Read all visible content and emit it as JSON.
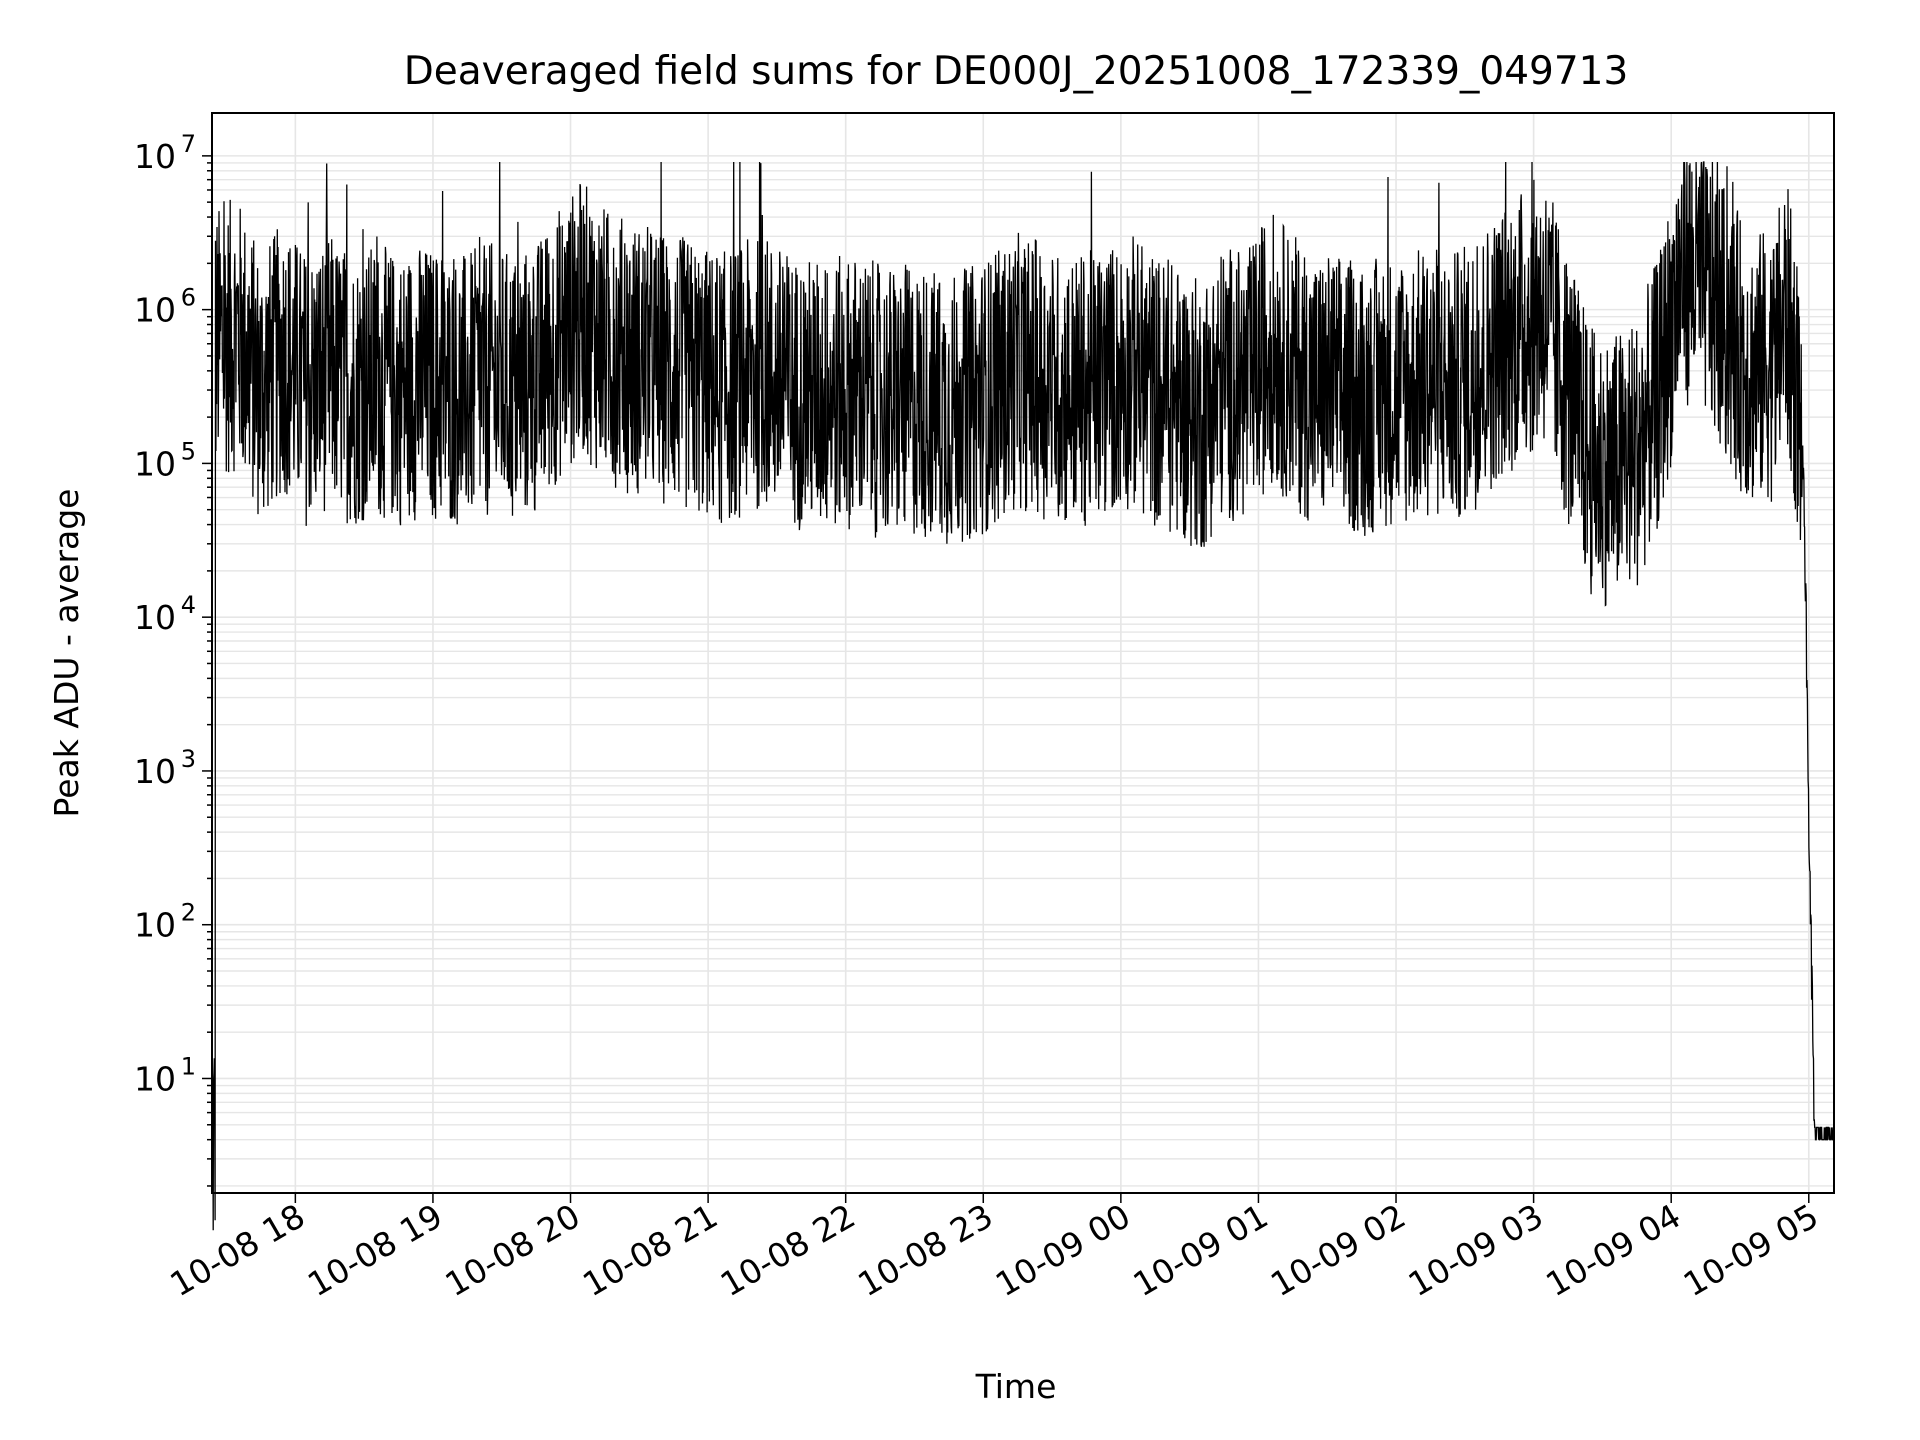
{
  "chart_data": {
    "type": "line",
    "title": "Deaveraged field sums for DE000J_20251008_172339_049713",
    "xlabel": "Time",
    "ylabel": "Peak ADU - average",
    "yscale": "log",
    "ylim": [
      1.8,
      19000000
    ],
    "xlim": [
      "2025-10-08 17:23:39",
      "2025-10-09 05:11:00"
    ],
    "grid": true,
    "legend": "none",
    "line_color": "#000000",
    "grid_color": "#e6e6e6",
    "x_ticks": [
      "10-08 18",
      "10-08 19",
      "10-08 20",
      "10-08 21",
      "10-08 22",
      "10-08 23",
      "10-09 00",
      "10-09 01",
      "10-09 02",
      "10-09 03",
      "10-09 04",
      "10-09 05"
    ],
    "y_ticks": [
      {
        "base": "10",
        "exp": "1",
        "value": 10
      },
      {
        "base": "10",
        "exp": "2",
        "value": 100
      },
      {
        "base": "10",
        "exp": "3",
        "value": 1000
      },
      {
        "base": "10",
        "exp": "4",
        "value": 10000
      },
      {
        "base": "10",
        "exp": "5",
        "value": 100000
      },
      {
        "base": "10",
        "exp": "6",
        "value": 1000000
      },
      {
        "base": "10",
        "exp": "7",
        "value": 10000000
      }
    ],
    "series": [
      {
        "x": [
          "2025-10-08 17:25",
          "2025-10-08 17:35",
          "2025-10-08 17:45",
          "2025-10-08 17:55",
          "2025-10-08 18:05",
          "2025-10-08 18:15",
          "2025-10-08 18:25",
          "2025-10-08 18:35",
          "2025-10-08 18:45",
          "2025-10-08 18:55",
          "2025-10-08 19:05",
          "2025-10-08 19:15",
          "2025-10-08 19:25",
          "2025-10-08 19:35",
          "2025-10-08 19:45",
          "2025-10-08 19:55",
          "2025-10-08 20:05",
          "2025-10-08 20:15",
          "2025-10-08 20:25",
          "2025-10-08 20:35",
          "2025-10-08 20:45",
          "2025-10-08 20:55",
          "2025-10-08 21:05",
          "2025-10-08 21:15",
          "2025-10-08 21:25",
          "2025-10-08 21:35",
          "2025-10-08 21:45",
          "2025-10-08 21:55",
          "2025-10-08 22:05",
          "2025-10-08 22:15",
          "2025-10-08 22:25",
          "2025-10-08 22:35",
          "2025-10-08 22:45",
          "2025-10-08 22:55",
          "2025-10-08 23:05",
          "2025-10-08 23:15",
          "2025-10-08 23:25",
          "2025-10-08 23:35",
          "2025-10-08 23:45",
          "2025-10-08 23:55",
          "2025-10-09 00:05",
          "2025-10-09 00:15",
          "2025-10-09 00:25",
          "2025-10-09 00:35",
          "2025-10-09 00:45",
          "2025-10-09 00:55",
          "2025-10-09 01:05",
          "2025-10-09 01:15",
          "2025-10-09 01:25",
          "2025-10-09 01:35",
          "2025-10-09 01:45",
          "2025-10-09 01:55",
          "2025-10-09 02:05",
          "2025-10-09 02:15",
          "2025-10-09 02:25",
          "2025-10-09 02:35",
          "2025-10-09 02:45",
          "2025-10-09 02:55",
          "2025-10-09 03:05",
          "2025-10-09 03:15",
          "2025-10-09 03:25",
          "2025-10-09 03:35",
          "2025-10-09 03:45",
          "2025-10-09 03:55",
          "2025-10-09 04:05",
          "2025-10-09 04:15",
          "2025-10-09 04:25",
          "2025-10-09 04:35",
          "2025-10-09 04:45",
          "2025-10-09 04:50",
          "2025-10-09 04:55",
          "2025-10-09 05:00",
          "2025-10-09 05:03",
          "2025-10-09 05:05",
          "2025-10-09 05:11"
        ],
        "y": [
          600000,
          700000,
          300000,
          500000,
          300000,
          400000,
          300000,
          350000,
          300000,
          350000,
          300000,
          300000,
          350000,
          300000,
          350000,
          600000,
          900000,
          600000,
          500000,
          450000,
          400000,
          350000,
          300000,
          350000,
          400000,
          300000,
          280000,
          280000,
          300000,
          250000,
          250000,
          250000,
          220000,
          250000,
          300000,
          400000,
          350000,
          300000,
          300000,
          350000,
          400000,
          300000,
          250000,
          200000,
          350000,
          300000,
          600000,
          400000,
          300000,
          300000,
          250000,
          300000,
          300000,
          350000,
          300000,
          400000,
          600000,
          800000,
          1000000,
          300000,
          100000,
          90000,
          120000,
          300000,
          2000000,
          1500000,
          700000,
          400000,
          450000,
          1000000,
          300000,
          50000,
          4,
          4,
          4
        ]
      }
    ]
  }
}
